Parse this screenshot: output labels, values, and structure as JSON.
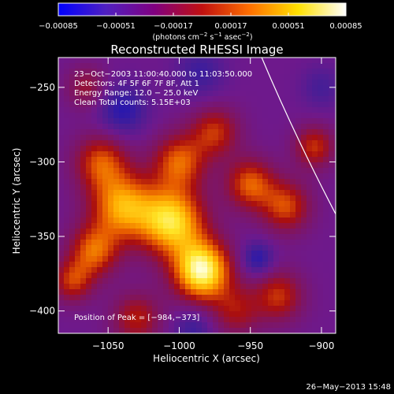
{
  "chart_data": {
    "type": "heatmap",
    "title": "Reconstructed RHESSI Image",
    "xlabel": "Heliocentric X (arcsec)",
    "ylabel": "Heliocentric Y (arcsec)",
    "xlim": [
      -1085,
      -890
    ],
    "ylim": [
      -415,
      -230
    ],
    "x_ticks": [
      -1050,
      -1000,
      -950,
      -900
    ],
    "x_tick_labels": [
      "−1050",
      "−1000",
      "−950",
      "−900"
    ],
    "y_ticks": [
      -250,
      -300,
      -350,
      -400
    ],
    "y_tick_labels": [
      "−250",
      "−300",
      "−350",
      "−400"
    ],
    "colorbar": {
      "ticks": [
        -0.00085,
        -0.00051,
        -0.00017,
        0.00017,
        0.00051,
        0.00085
      ],
      "tick_labels": [
        "−0.00085",
        "−0.00051",
        "−0.00017",
        "0.00017",
        "0.00051",
        "0.00085"
      ],
      "unit_prefix": "(photons cm",
      "unit_sup1": "−2",
      "unit_mid": " s",
      "unit_sup2": "−1",
      "unit_mid2": " asec",
      "unit_sup3": "−2",
      "unit_suffix": ")",
      "colors": [
        "#0000ff",
        "#5020c0",
        "#800080",
        "#c01010",
        "#ff7000",
        "#ffe000",
        "#ffffff"
      ]
    },
    "annotations": [
      "23−Oct−2003 11:00:40.000 to 11:03:50.000",
      "Detectors: 4F 5F 6F 7F 8F, Att 1",
      "Energy Range: 12.0 − 25.0 keV",
      "Clean    Total counts: 5.15E+03"
    ],
    "peak_label": "Position of Peak = [−984,−373]",
    "peak": [
      -984,
      -373
    ],
    "intensity_components": [
      {
        "x": -984,
        "y": -373,
        "amp": 1.0,
        "sigma": 14
      },
      {
        "x": -1005,
        "y": -340,
        "amp": 0.85,
        "sigma": 16
      },
      {
        "x": -1040,
        "y": -330,
        "amp": 0.7,
        "sigma": 16
      },
      {
        "x": -1055,
        "y": -300,
        "amp": 0.5,
        "sigma": 13
      },
      {
        "x": -1000,
        "y": -300,
        "amp": 0.55,
        "sigma": 13
      },
      {
        "x": -975,
        "y": -280,
        "amp": 0.45,
        "sigma": 12
      },
      {
        "x": -1060,
        "y": -360,
        "amp": 0.55,
        "sigma": 12
      },
      {
        "x": -1075,
        "y": -380,
        "amp": 0.45,
        "sigma": 10
      },
      {
        "x": -950,
        "y": -315,
        "amp": 0.55,
        "sigma": 12
      },
      {
        "x": -925,
        "y": -330,
        "amp": 0.5,
        "sigma": 12
      },
      {
        "x": -905,
        "y": -290,
        "amp": 0.45,
        "sigma": 10
      },
      {
        "x": -930,
        "y": -390,
        "amp": 0.45,
        "sigma": 12
      },
      {
        "x": -1030,
        "y": -405,
        "amp": 0.4,
        "sigma": 12
      },
      {
        "x": -960,
        "y": -400,
        "amp": 0.35,
        "sigma": 12
      },
      {
        "x": -1065,
        "y": -250,
        "amp": 0.3,
        "sigma": 10
      },
      {
        "x": -1040,
        "y": -265,
        "amp": -0.35,
        "sigma": 12
      },
      {
        "x": -985,
        "y": -240,
        "amp": -0.25,
        "sigma": 12
      },
      {
        "x": -945,
        "y": -365,
        "amp": -0.35,
        "sigma": 8
      },
      {
        "x": -990,
        "y": -412,
        "amp": -0.25,
        "sigma": 10
      },
      {
        "x": -900,
        "y": -250,
        "amp": -0.2,
        "sigma": 10
      }
    ],
    "limb_curve": [
      [
        -942,
        -230
      ],
      [
        -920,
        -280
      ],
      [
        -890,
        -335
      ]
    ]
  },
  "footer": {
    "date": "26−May−2013 15:48"
  }
}
